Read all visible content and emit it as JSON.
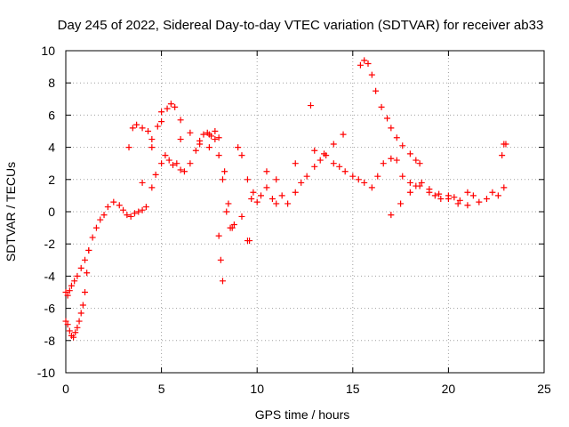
{
  "chart_data": {
    "type": "scatter",
    "title": "Day 245 of 2022, Sidereal Day-to-day VTEC variation (SDTVAR) for receiver ab33",
    "xlabel": "GPS time / hours",
    "ylabel": "SDTVAR / TECUs",
    "xlim": [
      0,
      25
    ],
    "ylim": [
      -10,
      10
    ],
    "xticks": [
      "0",
      "5",
      "10",
      "15",
      "20",
      "25"
    ],
    "yticks": [
      "-10",
      "-8",
      "-6",
      "-4",
      "-2",
      "0",
      "2",
      "4",
      "6",
      "8",
      "10"
    ],
    "grid": true,
    "marker": "+",
    "series_color": "#ff0000",
    "series": [
      {
        "name": "SDTVAR",
        "x": [
          0.0,
          0.1,
          0.2,
          0.3,
          0.45,
          0.6,
          0.8,
          1.0,
          1.2,
          1.4,
          1.6,
          1.8,
          2.0,
          2.2,
          2.5,
          2.8,
          3.0,
          3.2,
          3.4,
          3.6,
          3.8,
          4.0,
          4.2,
          4.5,
          4.7,
          5.0,
          5.2,
          5.4,
          5.6,
          5.8,
          6.0,
          6.2,
          6.5,
          6.8,
          7.0,
          7.2,
          7.4,
          7.6,
          7.8,
          8.0,
          8.2,
          8.4,
          8.6,
          8.8,
          9.0,
          9.2,
          9.5,
          9.8,
          10.0,
          10.2,
          10.5,
          10.8,
          11.0,
          11.3,
          11.6,
          12.0,
          12.3,
          12.6,
          13.0,
          13.3,
          13.6,
          14.0,
          14.3,
          14.6,
          15.0,
          15.3,
          15.6,
          16.0,
          16.3,
          16.6,
          17.0,
          17.3,
          17.6,
          18.0,
          18.3,
          18.6,
          19.0,
          19.3,
          19.6,
          20.0,
          20.3,
          20.6,
          21.0,
          21.3,
          21.6,
          22.0,
          22.3,
          22.6,
          22.9,
          0.0,
          0.1,
          0.2,
          0.3,
          0.4,
          0.5,
          0.6,
          0.7,
          0.8,
          0.9,
          1.0,
          1.1,
          1.2,
          3.3,
          3.5,
          3.7,
          4.0,
          4.3,
          4.5,
          4.8,
          5.0,
          5.3,
          5.5,
          5.7,
          6.0,
          6.5,
          7.0,
          7.5,
          7.8,
          8.0,
          8.3,
          8.5,
          8.7,
          9.5,
          9.7,
          12.8,
          13.5,
          14.5,
          15.4,
          15.6,
          15.8,
          16.0,
          16.2,
          16.5,
          16.8,
          17.0,
          17.3,
          17.6,
          18.0,
          18.3,
          18.5,
          17.0,
          17.5,
          18.0,
          18.5,
          19.0,
          19.5,
          20.0,
          20.5,
          21.0,
          22.8,
          22.9,
          23.0,
          4.0,
          4.5,
          5.0,
          6.0,
          7.5,
          8.0,
          8.1,
          8.2,
          9.2,
          9.6,
          10.5,
          11.0,
          12.0,
          13.0,
          14.0
        ],
        "y": [
          -5.0,
          -5.2,
          -4.9,
          -4.6,
          -4.3,
          -4.0,
          -3.5,
          -3.0,
          -2.4,
          -1.6,
          -1.0,
          -0.5,
          -0.2,
          0.3,
          0.6,
          0.4,
          0.1,
          -0.2,
          -0.3,
          -0.1,
          0.0,
          0.1,
          0.3,
          1.5,
          2.3,
          3.0,
          3.5,
          3.2,
          2.9,
          3.0,
          2.6,
          2.5,
          3.0,
          3.8,
          4.4,
          4.8,
          4.9,
          4.7,
          4.5,
          3.5,
          2.0,
          0.0,
          -1.0,
          -0.8,
          4.0,
          3.5,
          2.0,
          1.2,
          0.6,
          1.0,
          1.5,
          0.8,
          0.5,
          1.0,
          0.5,
          1.2,
          1.8,
          2.2,
          2.8,
          3.2,
          3.5,
          3.0,
          2.8,
          2.5,
          2.2,
          2.0,
          1.8,
          1.5,
          2.2,
          3.0,
          3.3,
          3.2,
          2.2,
          1.8,
          1.6,
          1.8,
          1.2,
          1.0,
          0.8,
          1.0,
          0.9,
          0.7,
          1.2,
          1.0,
          0.6,
          0.8,
          1.2,
          1.0,
          1.5,
          -6.8,
          -7.0,
          -7.4,
          -7.7,
          -7.8,
          -7.5,
          -7.2,
          -6.8,
          -6.3,
          -5.8,
          -5.0,
          -3.8,
          -2.4,
          4.0,
          5.2,
          5.4,
          5.2,
          5.0,
          4.5,
          5.3,
          6.2,
          6.4,
          6.7,
          6.5,
          5.7,
          4.9,
          4.2,
          4.8,
          5.0,
          4.6,
          2.5,
          0.5,
          -1.0,
          -1.8,
          0.8,
          6.6,
          3.6,
          4.8,
          9.1,
          9.4,
          9.2,
          8.5,
          7.5,
          6.5,
          5.8,
          5.2,
          4.6,
          4.1,
          3.6,
          3.2,
          3.0,
          -0.2,
          0.5,
          1.2,
          1.6,
          1.4,
          1.1,
          0.8,
          0.5,
          0.4,
          3.5,
          4.2,
          4.2,
          1.8,
          4.0,
          5.6,
          4.5,
          4.0,
          -1.5,
          -3.0,
          -4.3,
          -0.3,
          -1.8,
          2.5,
          2.0,
          3.0,
          3.8,
          4.2
        ]
      }
    ]
  }
}
